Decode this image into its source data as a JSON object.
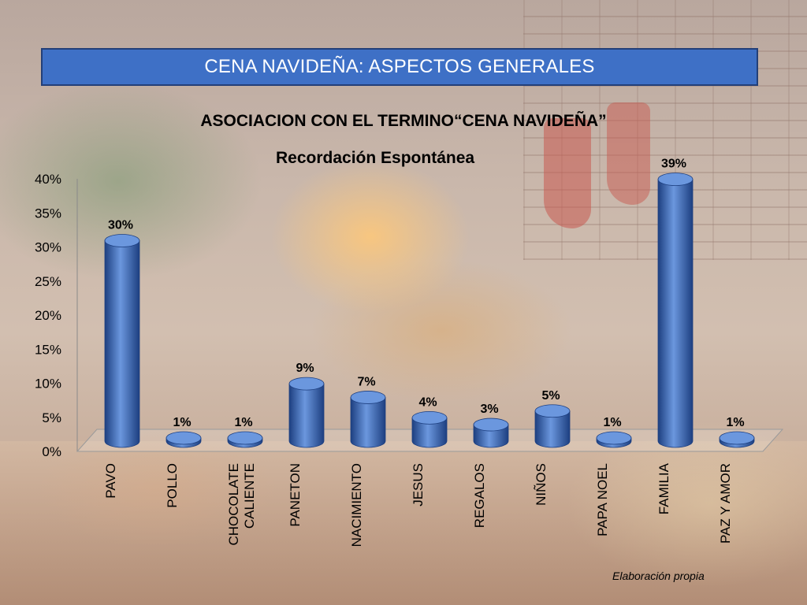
{
  "slide": {
    "title": "CENA NAVIDEÑA: ASPECTOS GENERALES",
    "subtitle": "ASOCIACION CON EL TERMINO“CENA  NAVIDEÑA”",
    "source": "Elaboración propia"
  },
  "colors": {
    "bar": "#2f62b4",
    "bar_light": "#6b97de",
    "bar_dark": "#1d3f80",
    "title_fill": "#3e70c6"
  },
  "chart_data": {
    "type": "bar",
    "title": "Recordación Espontánea",
    "categories": [
      "PAVO",
      "POLLO",
      "CHOCOLATE\nCALIENTE",
      "PANETON",
      "NACIMIENTO",
      "JESUS",
      "REGALOS",
      "NIÑOS",
      "PAPA NOEL",
      "FAMILIA",
      "PAZ Y AMOR"
    ],
    "values": [
      30,
      1,
      1,
      9,
      7,
      4,
      3,
      5,
      1,
      39,
      1
    ],
    "data_labels": [
      "30%",
      "1%",
      "1%",
      "9%",
      "7%",
      "4%",
      "3%",
      "5%",
      "1%",
      "39%",
      "1%"
    ],
    "y_ticks": [
      "0%",
      "5%",
      "10%",
      "15%",
      "20%",
      "25%",
      "30%",
      "35%",
      "40%"
    ],
    "ylim": [
      0,
      40
    ],
    "xlabel": "",
    "ylabel": ""
  }
}
